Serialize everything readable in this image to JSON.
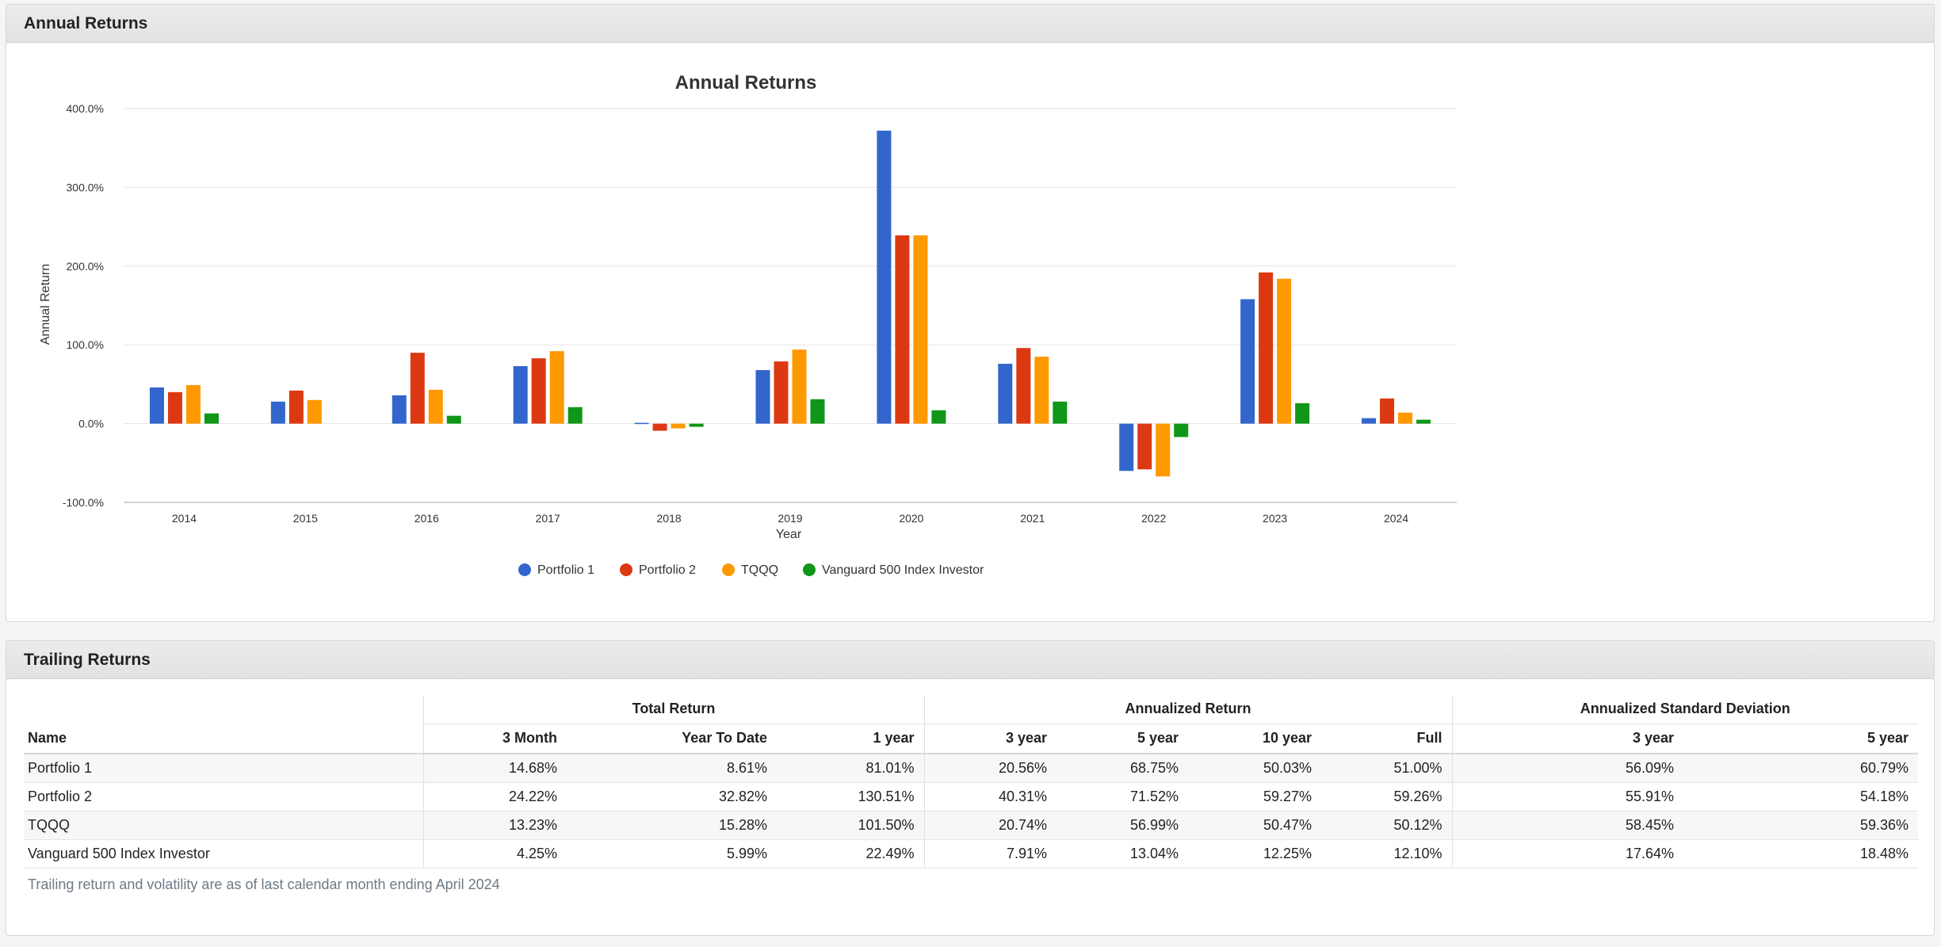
{
  "panels": {
    "annual_title": "Annual Returns",
    "trailing_title": "Trailing Returns"
  },
  "chart_data": {
    "type": "bar",
    "title": "Annual Returns",
    "xlabel": "Year",
    "ylabel": "Annual Return",
    "ylim": [
      -100,
      400
    ],
    "yticks": [
      "400.0%",
      "300.0%",
      "200.0%",
      "100.0%",
      "0.0%",
      "-100.0%"
    ],
    "ytick_values": [
      400,
      300,
      200,
      100,
      0,
      -100
    ],
    "categories": [
      "2014",
      "2015",
      "2016",
      "2017",
      "2018",
      "2019",
      "2020",
      "2021",
      "2022",
      "2023",
      "2024"
    ],
    "grid": true,
    "legend_position": "bottom",
    "series": [
      {
        "name": "Portfolio 1",
        "color": "#3366cc",
        "values": [
          46,
          28,
          36,
          73,
          1,
          68,
          372,
          76,
          -60,
          158,
          7
        ]
      },
      {
        "name": "Portfolio 2",
        "color": "#dc3912",
        "values": [
          40,
          42,
          90,
          83,
          -9,
          79,
          239,
          96,
          -58,
          192,
          32
        ]
      },
      {
        "name": "TQQQ",
        "color": "#ff9900",
        "values": [
          49,
          30,
          43,
          92,
          -6,
          94,
          239,
          85,
          -67,
          184,
          14
        ]
      },
      {
        "name": "Vanguard 500 Index Investor",
        "color": "#109618",
        "values": [
          13,
          0,
          10,
          21,
          -4,
          31,
          17,
          28,
          -17,
          26,
          5
        ]
      }
    ]
  },
  "trailing": {
    "groups": {
      "total": "Total Return",
      "annualized": "Annualized Return",
      "stddev": "Annualized Standard Deviation"
    },
    "columns": {
      "name": "Name",
      "m3": "3 Month",
      "ytd": "Year To Date",
      "y1": "1 year",
      "y3": "3 year",
      "y5": "5 year",
      "y10": "10 year",
      "full": "Full",
      "sd3": "3 year",
      "sd5": "5 year"
    },
    "rows": [
      [
        "Portfolio 1",
        "14.68%",
        "8.61%",
        "81.01%",
        "20.56%",
        "68.75%",
        "50.03%",
        "51.00%",
        "56.09%",
        "60.79%"
      ],
      [
        "Portfolio 2",
        "24.22%",
        "32.82%",
        "130.51%",
        "40.31%",
        "71.52%",
        "59.27%",
        "59.26%",
        "55.91%",
        "54.18%"
      ],
      [
        "TQQQ",
        "13.23%",
        "15.28%",
        "101.50%",
        "20.74%",
        "56.99%",
        "50.47%",
        "50.12%",
        "58.45%",
        "59.36%"
      ],
      [
        "Vanguard 500 Index Investor",
        "4.25%",
        "5.99%",
        "22.49%",
        "7.91%",
        "13.04%",
        "12.25%",
        "12.10%",
        "17.64%",
        "18.48%"
      ]
    ],
    "note": "Trailing return and volatility are as of last calendar month ending April 2024"
  }
}
